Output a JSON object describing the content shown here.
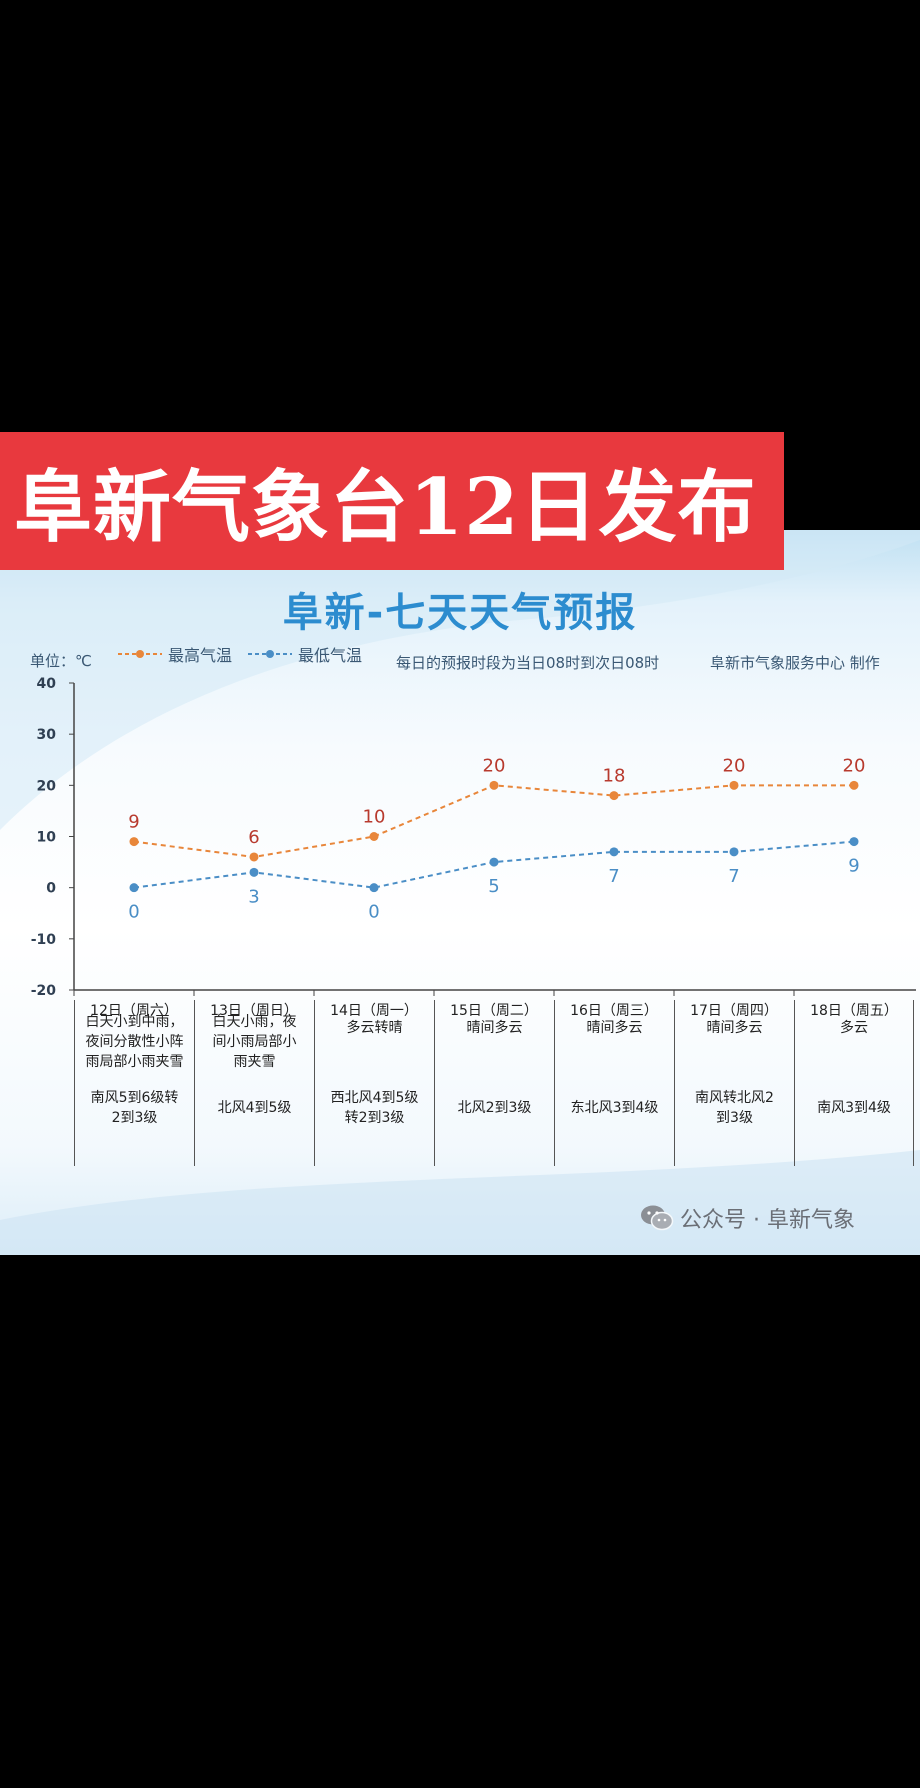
{
  "banner": "阜新气象台12日发布",
  "chart_data": {
    "type": "line",
    "title": "阜新-七天天气预报",
    "unit_label": "单位：℃",
    "legend": [
      "最高气温",
      "最低气温"
    ],
    "note": "每日的预报时段为当日08时到次日08时",
    "producer": "阜新市气象服务中心 制作",
    "categories": [
      "12日（周六）",
      "13日（周日）",
      "14日（周一）",
      "15日（周二）",
      "16日（周三）",
      "17日（周四）",
      "18日（周五）"
    ],
    "series": [
      {
        "name": "最高气温",
        "values": [
          9,
          6,
          10,
          20,
          18,
          20,
          20
        ],
        "color": "#e8863a",
        "label_color": "#b83a2e"
      },
      {
        "name": "最低气温",
        "values": [
          0,
          3,
          0,
          5,
          7,
          7,
          9
        ],
        "color": "#4a8ec6",
        "label_color": "#4a8ec6"
      }
    ],
    "ylim": [
      -20,
      40
    ],
    "yticks": [
      40,
      30,
      20,
      10,
      0,
      -10,
      -20
    ],
    "grid": false
  },
  "days": [
    {
      "weather": "白天小到中雨，\n夜间分散性小阵\n雨局部小雨夹雪",
      "wind": "南风5到6级转\n2到3级"
    },
    {
      "weather": "白天小雨，夜\n间小雨局部小\n雨夹雪",
      "wind": "北风4到5级"
    },
    {
      "weather": "多云转晴",
      "wind": "西北风4到5级\n转2到3级"
    },
    {
      "weather": "晴间多云",
      "wind": "北风2到3级"
    },
    {
      "weather": "晴间多云",
      "wind": "东北风3到4级"
    },
    {
      "weather": "晴间多云",
      "wind": "南风转北风2\n到3级"
    },
    {
      "weather": "多云",
      "wind": "南风3到4级"
    }
  ],
  "watermark": "公众号 · 阜新气象",
  "watermark_icon": "wechat-icon"
}
